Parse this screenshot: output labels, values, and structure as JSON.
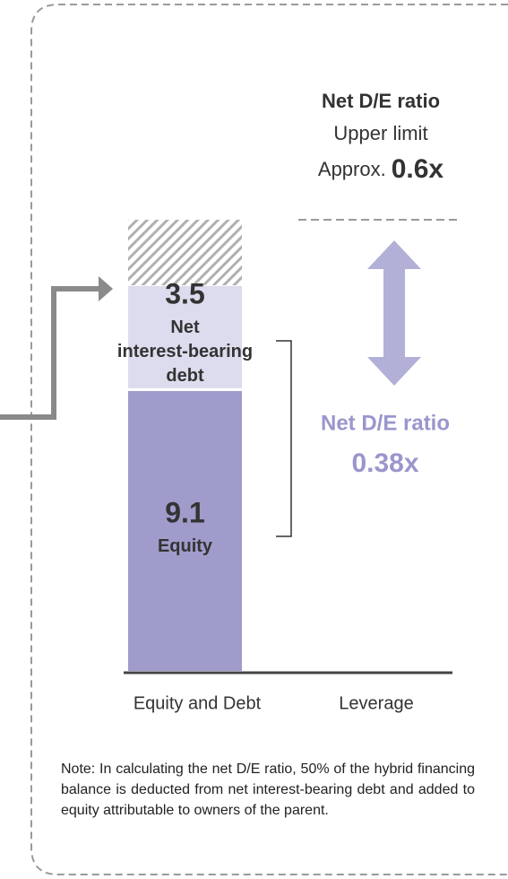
{
  "bar": {
    "segments": [
      {
        "value": 9.1,
        "label_lines": [
          "Equity"
        ],
        "color": "#9f9bcb"
      },
      {
        "value": 3.5,
        "label_lines": [
          "Net",
          "interest-bearing",
          "debt"
        ],
        "color": "#dddcee"
      }
    ]
  },
  "axis_labels": [
    "Equity and Debt",
    "Leverage"
  ],
  "limit": {
    "title": "Net D/E ratio",
    "subtitle": "Upper limit",
    "prefix": "Approx.",
    "value_label": "0.6x"
  },
  "ratio": {
    "title": "Net D/E ratio",
    "value_label": "0.38x"
  },
  "note": "Note: In calculating the net D/E ratio, 50% of the hybrid financing balance is deducted from net interest-bearing debt and added to equity attributable to owners of the parent."
}
